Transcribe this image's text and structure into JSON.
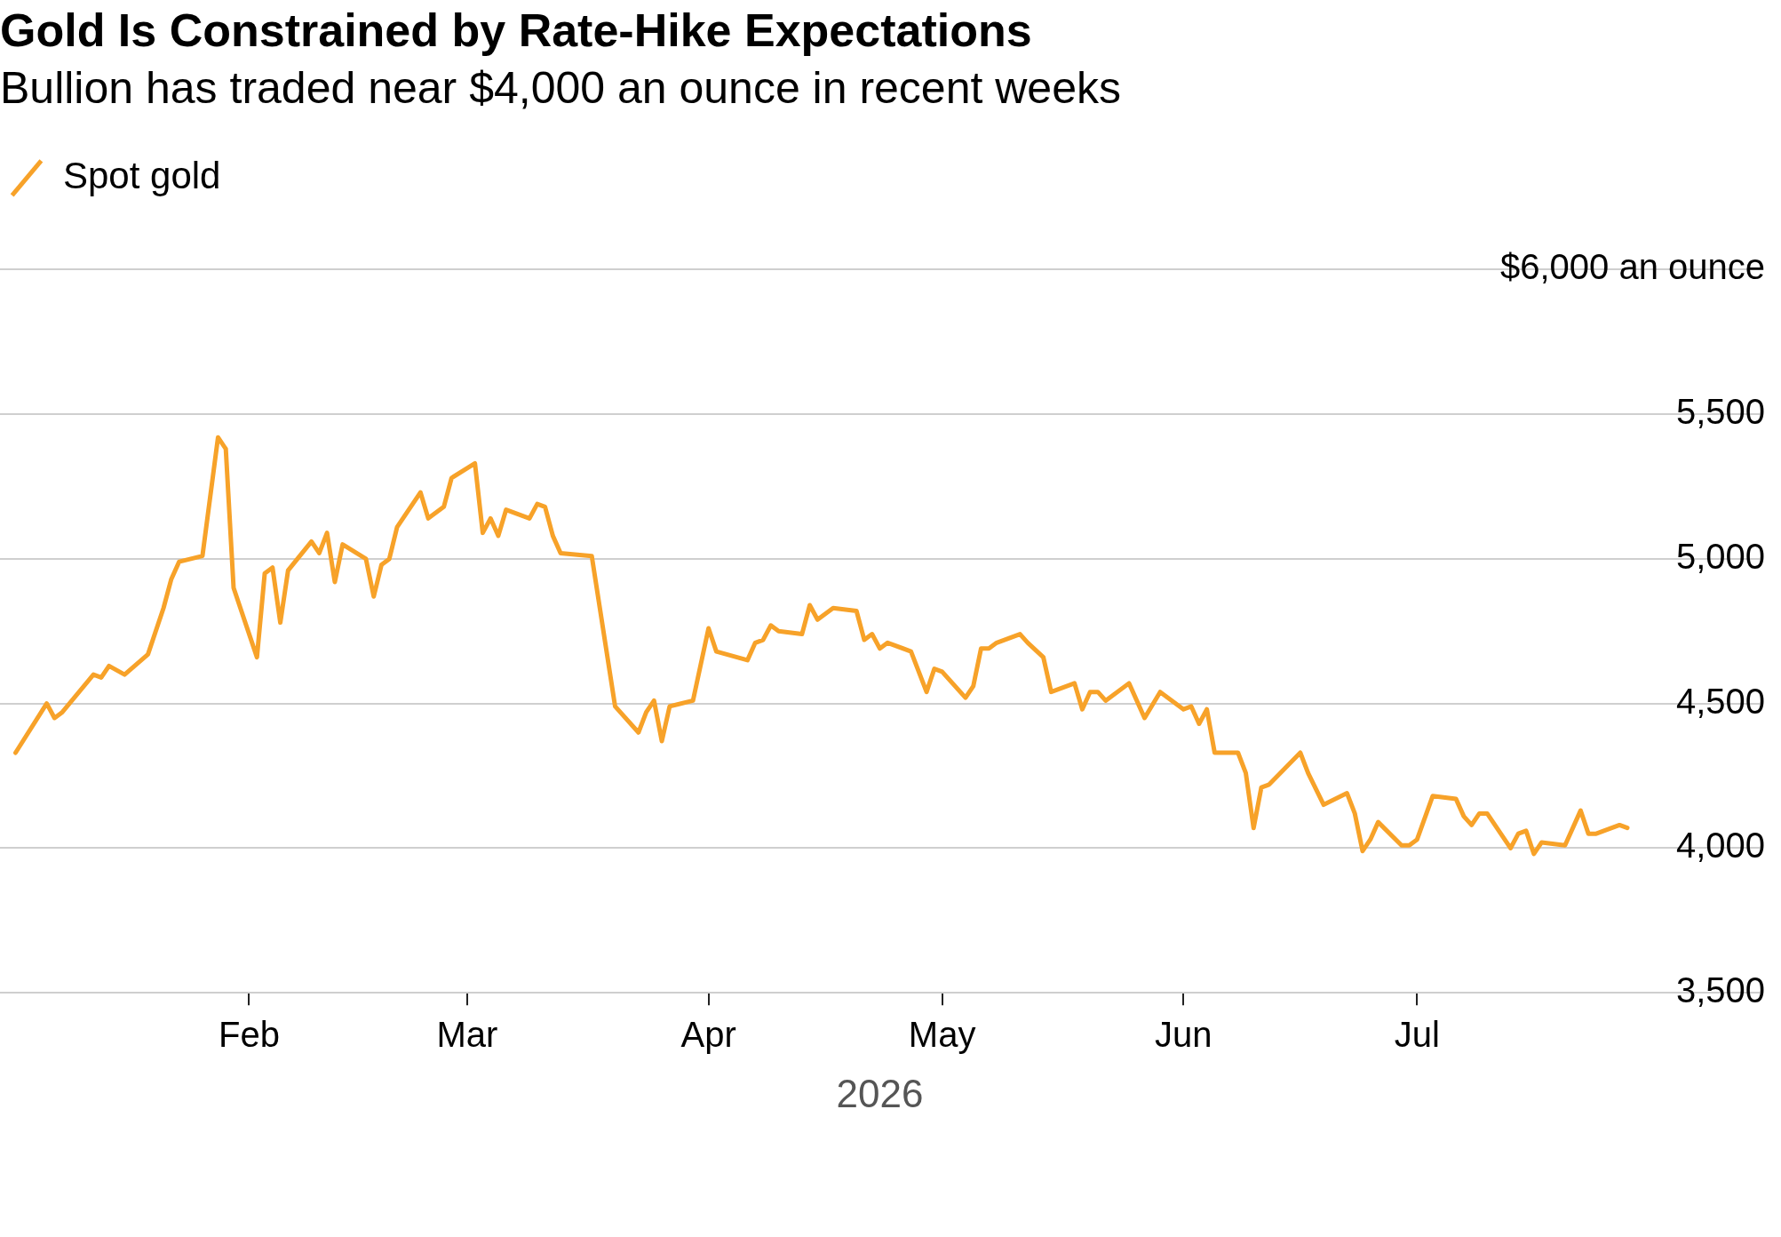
{
  "chart_data": {
    "type": "line",
    "title": "Gold Is Constrained by Rate-Hike Expectations",
    "subtitle": "Bullion has traded near $4,000 an ounce in recent weeks",
    "xlabel": "2026",
    "x": [
      "2026-01-02",
      "2026-01-06",
      "2026-01-07",
      "2026-01-08",
      "2026-01-12",
      "2026-01-13",
      "2026-01-14",
      "2026-01-16",
      "2026-01-19",
      "2026-01-21",
      "2026-01-22",
      "2026-01-23",
      "2026-01-26",
      "2026-01-28",
      "2026-01-29",
      "2026-01-30",
      "2026-02-02",
      "2026-02-03",
      "2026-02-04",
      "2026-02-05",
      "2026-02-06",
      "2026-02-09",
      "2026-02-10",
      "2026-02-11",
      "2026-02-12",
      "2026-02-13",
      "2026-02-16",
      "2026-02-17",
      "2026-02-18",
      "2026-02-19",
      "2026-02-20",
      "2026-02-23",
      "2026-02-24",
      "2026-02-26",
      "2026-02-27",
      "2026-03-02",
      "2026-03-03",
      "2026-03-04",
      "2026-03-05",
      "2026-03-06",
      "2026-03-09",
      "2026-03-10",
      "2026-03-11",
      "2026-03-12",
      "2026-03-13",
      "2026-03-17",
      "2026-03-20",
      "2026-03-23",
      "2026-03-24",
      "2026-03-25",
      "2026-03-26",
      "2026-03-27",
      "2026-03-30",
      "2026-04-01",
      "2026-04-02",
      "2026-04-06",
      "2026-04-07",
      "2026-04-08",
      "2026-04-09",
      "2026-04-10",
      "2026-04-13",
      "2026-04-14",
      "2026-04-15",
      "2026-04-17",
      "2026-04-20",
      "2026-04-21",
      "2026-04-22",
      "2026-04-23",
      "2026-04-24",
      "2026-04-27",
      "2026-04-29",
      "2026-04-30",
      "2026-05-01",
      "2026-05-04",
      "2026-05-05",
      "2026-05-06",
      "2026-05-07",
      "2026-05-08",
      "2026-05-11",
      "2026-05-12",
      "2026-05-14",
      "2026-05-15",
      "2026-05-18",
      "2026-05-19",
      "2026-05-20",
      "2026-05-21",
      "2026-05-22",
      "2026-05-25",
      "2026-05-27",
      "2026-05-29",
      "2026-06-01",
      "2026-06-02",
      "2026-06-03",
      "2026-06-04",
      "2026-06-05",
      "2026-06-08",
      "2026-06-09",
      "2026-06-10",
      "2026-06-11",
      "2026-06-12",
      "2026-06-16",
      "2026-06-17",
      "2026-06-19",
      "2026-06-22",
      "2026-06-23",
      "2026-06-24",
      "2026-06-25",
      "2026-06-26",
      "2026-06-29",
      "2026-06-30",
      "2026-07-01",
      "2026-07-03",
      "2026-07-06",
      "2026-07-07",
      "2026-07-08",
      "2026-07-09",
      "2026-07-10",
      "2026-07-13",
      "2026-07-14",
      "2026-07-15",
      "2026-07-16",
      "2026-07-17",
      "2026-07-20",
      "2026-07-22",
      "2026-07-23",
      "2026-07-24",
      "2026-07-27",
      "2026-07-28"
    ],
    "series": [
      {
        "name": "Spot gold",
        "color": "#f7a229",
        "values": [
          4330,
          4500,
          4450,
          4470,
          4600,
          4590,
          4630,
          4600,
          4670,
          4830,
          4930,
          4990,
          5010,
          5420,
          5380,
          4900,
          4660,
          4950,
          4970,
          4780,
          4960,
          5060,
          5020,
          5090,
          4920,
          5050,
          5000,
          4870,
          4980,
          5000,
          5110,
          5230,
          5140,
          5180,
          5280,
          5330,
          5090,
          5140,
          5080,
          5170,
          5140,
          5190,
          5180,
          5080,
          5020,
          5010,
          4490,
          4400,
          4470,
          4510,
          4370,
          4490,
          4510,
          4760,
          4680,
          4650,
          4710,
          4720,
          4770,
          4750,
          4740,
          4840,
          4790,
          4830,
          4820,
          4720,
          4740,
          4690,
          4710,
          4680,
          4540,
          4620,
          4610,
          4520,
          4560,
          4690,
          4690,
          4710,
          4740,
          4710,
          4660,
          4540,
          4570,
          4480,
          4540,
          4540,
          4510,
          4570,
          4450,
          4540,
          4480,
          4490,
          4430,
          4480,
          4330,
          4330,
          4260,
          4070,
          4210,
          4220,
          4330,
          4260,
          4150,
          4190,
          4120,
          3990,
          4030,
          4090,
          4010,
          4010,
          4030,
          4180,
          4170,
          4110,
          4080,
          4120,
          4120,
          4000,
          4050,
          4060,
          3980,
          4020,
          4010,
          4130,
          4050,
          4050,
          4080,
          4070
        ]
      }
    ],
    "xlim": [
      "2025-12-31",
      "2026-08-14"
    ],
    "xticks": [
      {
        "value": "2026-02-01",
        "label": "Feb"
      },
      {
        "value": "2026-03-01",
        "label": "Mar"
      },
      {
        "value": "2026-04-01",
        "label": "Apr"
      },
      {
        "value": "2026-05-01",
        "label": "May"
      },
      {
        "value": "2026-06-01",
        "label": "Jun"
      },
      {
        "value": "2026-07-01",
        "label": "Jul"
      }
    ],
    "ylim": [
      3500,
      6000
    ],
    "yticks": [
      {
        "value": 3500,
        "label": "3,500"
      },
      {
        "value": 4000,
        "label": "4,000"
      },
      {
        "value": 4500,
        "label": "4,500"
      },
      {
        "value": 5000,
        "label": "5,000"
      },
      {
        "value": 5500,
        "label": "5,500"
      },
      {
        "value": 6000,
        "label": "$6,000 an ounce"
      }
    ],
    "grid": "y",
    "legend": "top left",
    "marker": "none",
    "line_style": "solid"
  }
}
